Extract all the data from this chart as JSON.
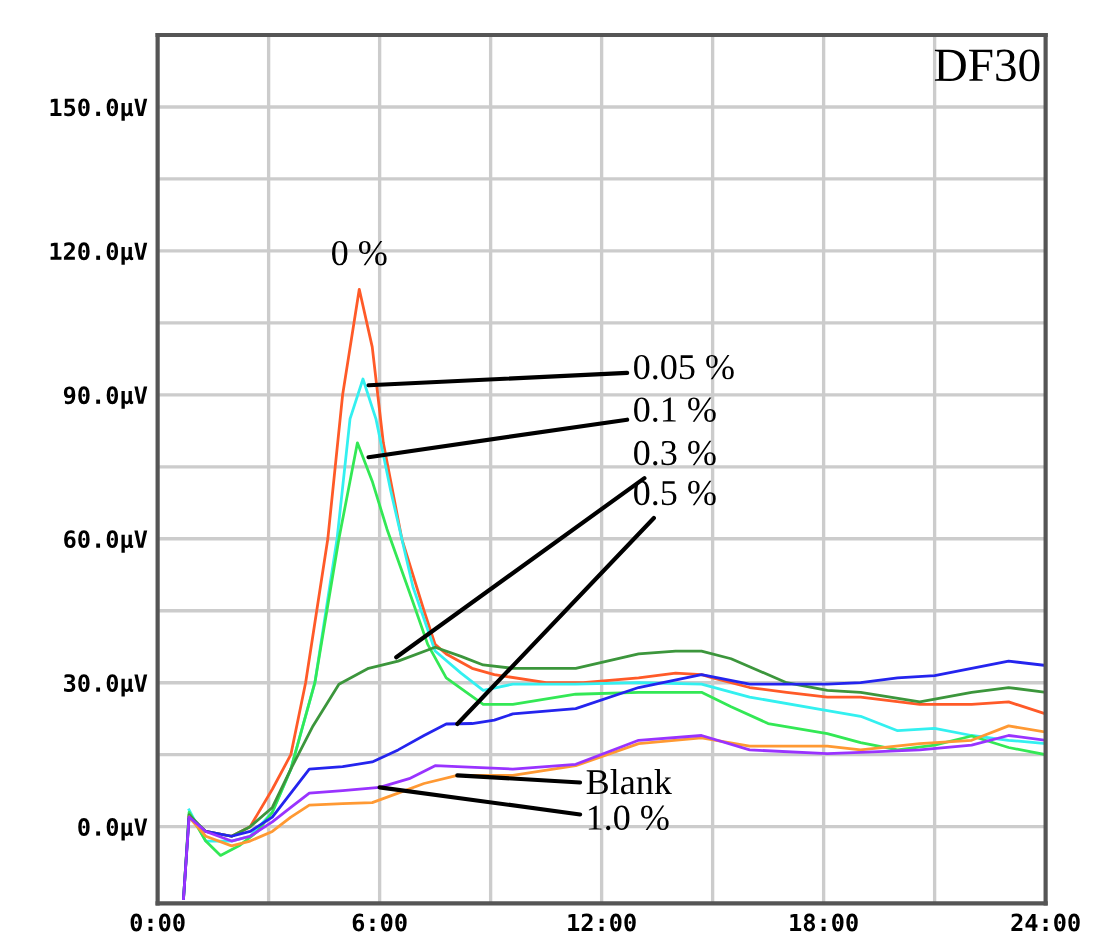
{
  "chart_data": {
    "type": "line",
    "title": "DF30",
    "xlim": [
      0,
      24
    ],
    "ylim": [
      -16,
      165
    ],
    "xticks": [
      {
        "value": 0,
        "label": "0:00"
      },
      {
        "value": 3,
        "label": null
      },
      {
        "value": 6,
        "label": "6:00"
      },
      {
        "value": 9,
        "label": null
      },
      {
        "value": 12,
        "label": "12:00"
      },
      {
        "value": 15,
        "label": null
      },
      {
        "value": 18,
        "label": "18:00"
      },
      {
        "value": 21,
        "label": null
      },
      {
        "value": 24,
        "label": "24:00"
      }
    ],
    "yticks": [
      {
        "value": 0,
        "label": "0.0μV"
      },
      {
        "value": 15,
        "label": null
      },
      {
        "value": 30,
        "label": "30.0μV"
      },
      {
        "value": 45,
        "label": null
      },
      {
        "value": 60,
        "label": "60.0μV"
      },
      {
        "value": 75,
        "label": null
      },
      {
        "value": 90,
        "label": "90.0μV"
      },
      {
        "value": 105,
        "label": null
      },
      {
        "value": 120,
        "label": "120.0μV"
      },
      {
        "value": 135,
        "label": null
      },
      {
        "value": 150,
        "label": "150.0μV"
      }
    ],
    "grid": true,
    "legend": false,
    "marker": "none",
    "line_style": "solid",
    "series": [
      {
        "color": "#ff5a28",
        "x": [
          0.85,
          1.3,
          2,
          2.5,
          3.1,
          3.6,
          4,
          4.6,
          5,
          5.45,
          5.8,
          6.1,
          6.6,
          7.2,
          7.5,
          7.8,
          8.5,
          9.1,
          10.5,
          11.5,
          13,
          14,
          14.7,
          15,
          16,
          17,
          18.1,
          19,
          20.6,
          22,
          23,
          24
        ],
        "values": [
          2,
          -1,
          -2,
          0,
          7.8,
          15,
          30,
          60,
          90,
          112,
          100,
          80,
          60,
          45,
          38,
          36,
          33,
          31.7,
          30,
          30,
          31,
          32,
          31.7,
          31,
          29,
          28,
          27,
          27,
          25.5,
          25.5,
          26,
          23.5
        ]
      },
      {
        "color": "#33f0f0",
        "x": [
          0.85,
          1.3,
          2,
          2.5,
          3.1,
          3.6,
          4.25,
          4.85,
          5.2,
          5.55,
          5.9,
          6.3,
          6.9,
          7.5,
          8.2,
          8.8,
          9.6,
          11.3,
          13,
          14.7,
          16,
          18.1,
          19,
          20,
          21,
          22,
          23,
          24
        ],
        "values": [
          3.5,
          -3,
          -3,
          -2,
          3,
          12,
          30,
          60,
          85,
          93.3,
          85,
          70,
          50,
          36.6,
          32,
          28.4,
          29.7,
          29.7,
          30,
          29.7,
          27,
          24.2,
          23,
          20,
          20.5,
          19,
          18,
          17.3
        ]
      },
      {
        "color": "#33e855",
        "x": [
          0.7,
          0.85,
          1.3,
          1.7,
          2.2,
          2.7,
          3.1,
          3.6,
          4.25,
          4.9,
          5.4,
          5.8,
          6.2,
          6.8,
          7.3,
          7.8,
          8.8,
          9.6,
          11.3,
          13,
          14.7,
          15.5,
          16.5,
          18.1,
          19,
          20,
          21,
          22,
          23,
          24
        ],
        "values": [
          -15,
          3,
          -3,
          -6,
          -4,
          -1,
          3,
          12,
          30,
          60,
          80,
          72,
          62,
          49,
          38,
          31,
          25.5,
          25.5,
          27.6,
          28,
          28,
          25,
          21.5,
          19.4,
          17.5,
          16,
          17,
          18.9,
          16.5,
          15
        ]
      },
      {
        "color": "#3c963c",
        "x": [
          0.7,
          0.85,
          1.3,
          2,
          2.5,
          3.1,
          3.6,
          4.2,
          4.9,
          5.7,
          6.5,
          7.5,
          8.2,
          8.8,
          9.6,
          11.3,
          13,
          14,
          14.7,
          15.5,
          17,
          18.1,
          19,
          20.6,
          22,
          23,
          24
        ],
        "values": [
          -15,
          2.5,
          -1,
          -2,
          0,
          4,
          12,
          21,
          29.7,
          33,
          34.5,
          37.4,
          35.5,
          33.7,
          33,
          33,
          36,
          36.6,
          36.6,
          35,
          30,
          28.4,
          28,
          26,
          28,
          29,
          28
        ]
      },
      {
        "color": "#2424ee",
        "x": [
          0.7,
          0.85,
          1.3,
          2,
          2.5,
          3.1,
          3.6,
          4.1,
          5,
          5.8,
          6.5,
          7.2,
          7.8,
          8.5,
          9.1,
          9.6,
          11.3,
          13,
          14.7,
          16,
          18.1,
          19,
          20,
          21,
          22,
          23,
          24
        ],
        "values": [
          -15,
          2,
          -1,
          -2,
          -1,
          2,
          7,
          12,
          12.5,
          13.5,
          16,
          19,
          21.4,
          21.5,
          22.2,
          23.5,
          24.6,
          29,
          31.7,
          29.7,
          29.7,
          30,
          31,
          31.5,
          33,
          34.5,
          33.6
        ]
      },
      {
        "color": "#ff9933",
        "x": [
          0.85,
          1.3,
          2,
          2.5,
          3.1,
          3.6,
          4.1,
          5,
          5.8,
          6.5,
          7.2,
          8.1,
          9.6,
          11.3,
          13,
          14.7,
          16,
          18.1,
          19,
          20.6,
          22,
          23,
          24
        ],
        "values": [
          2,
          -2,
          -4,
          -3,
          -1,
          2,
          4.5,
          4.8,
          5,
          7,
          9,
          10.7,
          10.7,
          12.7,
          17.3,
          18.5,
          16.8,
          16.8,
          16,
          17.3,
          18,
          21,
          19.7
        ]
      },
      {
        "color": "#9933ff",
        "x": [
          0.7,
          0.85,
          1.3,
          2,
          2.5,
          3.1,
          3.6,
          4.1,
          5,
          6,
          6.8,
          7.5,
          8.1,
          9.6,
          11.3,
          13,
          14.7,
          16,
          18.1,
          19,
          20.6,
          22,
          23,
          24
        ],
        "values": [
          -15,
          2,
          -1,
          -3,
          -2,
          1,
          4,
          7,
          7.5,
          8.2,
          10,
          12.7,
          12.5,
          12,
          13,
          18,
          19,
          16,
          15.2,
          15.5,
          16,
          17,
          19,
          18
        ]
      }
    ],
    "annotations": [
      {
        "text": "0 %",
        "x": 5.45,
        "y": 112
      },
      {
        "text": "0.05 %",
        "x": 5.7,
        "y": 92
      },
      {
        "text": "0.1 %",
        "x": 5.7,
        "y": 77
      },
      {
        "text": "0.3 %",
        "x": 6.45,
        "y": 35.3
      },
      {
        "text": "0.5 %",
        "x": 8.1,
        "y": 21.4
      },
      {
        "text": "Blank",
        "x": 8.1,
        "y": 10.7
      },
      {
        "text": "1.0 %",
        "x": 6.0,
        "y": 8.2
      }
    ]
  }
}
